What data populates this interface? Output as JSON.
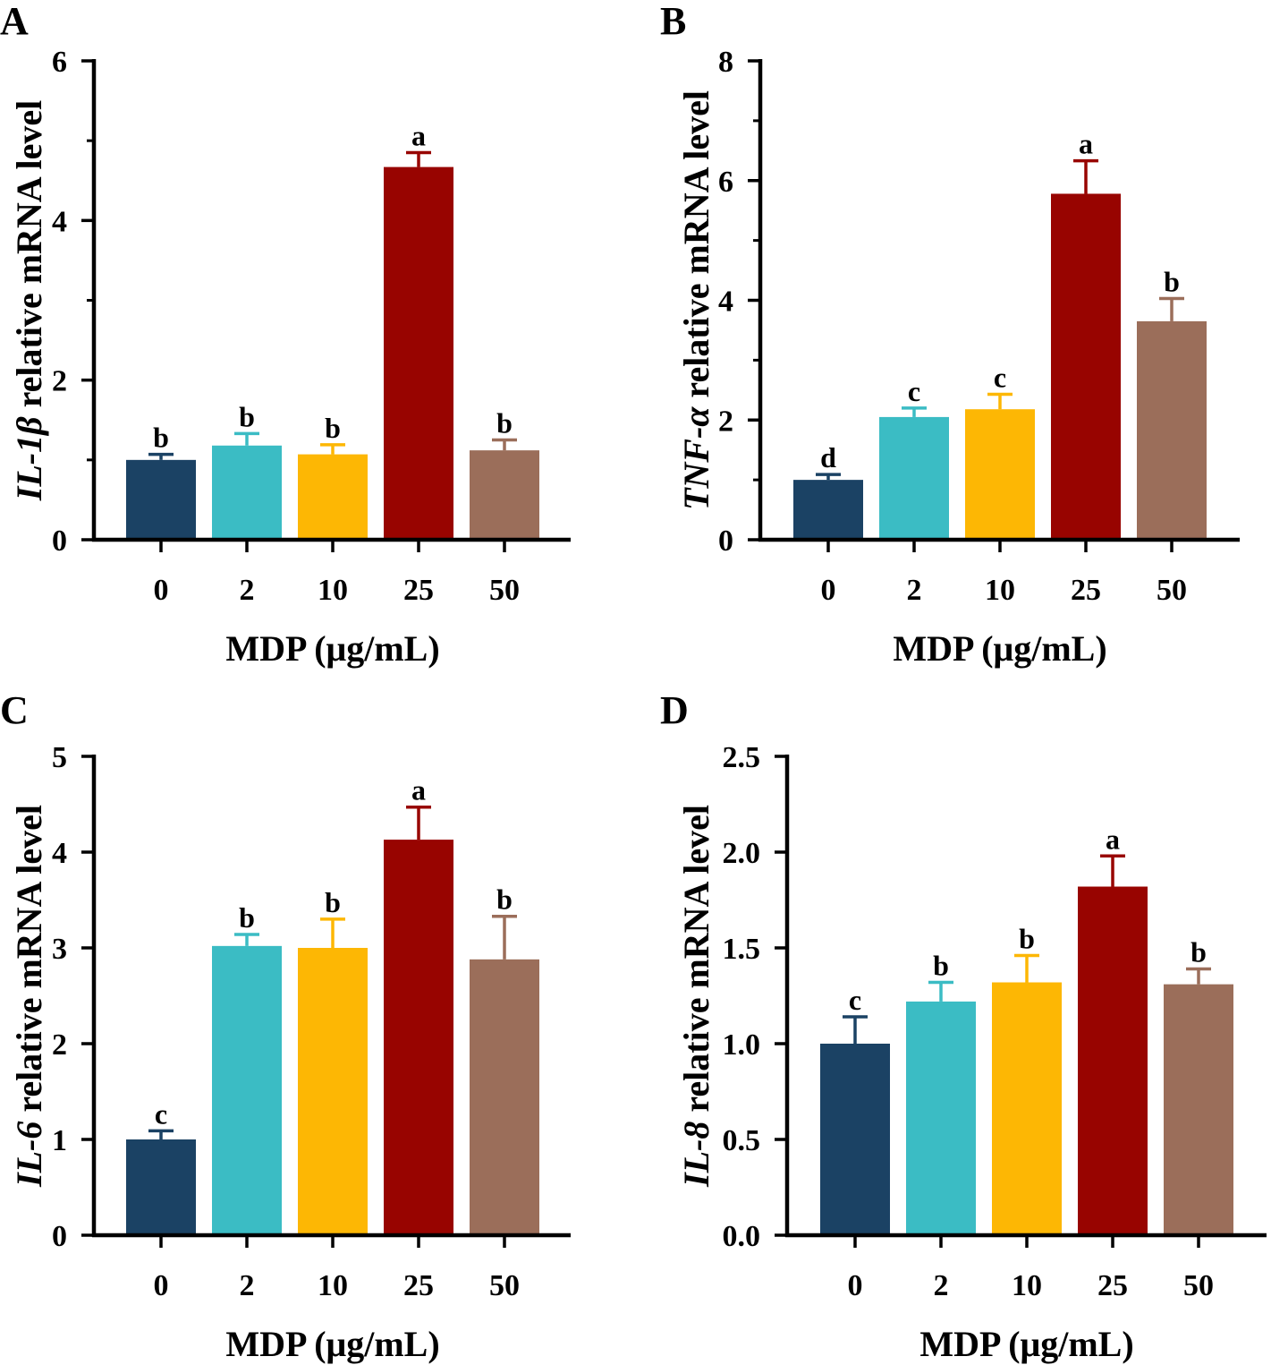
{
  "colors": {
    "bars": [
      "#1b4264",
      "#3bbcc4",
      "#fdb704",
      "#980400",
      "#9b6e5a"
    ],
    "axis": "#000000"
  },
  "chart_data": [
    {
      "type": "bar",
      "panel": "A",
      "ylabel_italic": "IL-1β",
      "ylabel_rest": " relative mRNA level",
      "xlabel": "MDP (μg/mL)",
      "categories": [
        "0",
        "2",
        "10",
        "25",
        "50"
      ],
      "values": [
        1.0,
        1.18,
        1.07,
        4.67,
        1.12
      ],
      "errors": [
        0.07,
        0.15,
        0.12,
        0.18,
        0.13
      ],
      "significance": [
        "b",
        "b",
        "b",
        "a",
        "b"
      ],
      "ylim": [
        0,
        6
      ],
      "yticks": [
        0,
        2,
        4,
        6
      ],
      "yticks_labels": [
        "0",
        "2",
        "4",
        "6"
      ],
      "minor_ticks": true
    },
    {
      "type": "bar",
      "panel": "B",
      "ylabel_italic": "TNF-α",
      "ylabel_rest": " relative mRNA level",
      "xlabel": "MDP (μg/mL)",
      "categories": [
        "0",
        "2",
        "10",
        "25",
        "50"
      ],
      "values": [
        1.0,
        2.05,
        2.18,
        5.78,
        3.65
      ],
      "errors": [
        0.09,
        0.15,
        0.25,
        0.55,
        0.38
      ],
      "significance": [
        "d",
        "c",
        "c",
        "a",
        "b"
      ],
      "ylim": [
        0,
        8
      ],
      "yticks": [
        0,
        2,
        4,
        6,
        8
      ],
      "yticks_labels": [
        "0",
        "2",
        "4",
        "6",
        "8"
      ],
      "minor_ticks": true
    },
    {
      "type": "bar",
      "panel": "C",
      "ylabel_italic": "IL-6",
      "ylabel_rest": " relative mRNA level",
      "xlabel": "MDP (μg/mL)",
      "categories": [
        "0",
        "2",
        "10",
        "25",
        "50"
      ],
      "values": [
        1.0,
        3.02,
        3.0,
        4.13,
        2.88
      ],
      "errors": [
        0.09,
        0.12,
        0.3,
        0.34,
        0.45
      ],
      "significance": [
        "c",
        "b",
        "b",
        "a",
        "b"
      ],
      "ylim": [
        0,
        5
      ],
      "yticks": [
        0,
        1,
        2,
        3,
        4,
        5
      ],
      "yticks_labels": [
        "0",
        "1",
        "2",
        "3",
        "4",
        "5"
      ],
      "minor_ticks": false
    },
    {
      "type": "bar",
      "panel": "D",
      "ylabel_italic": "IL-8",
      "ylabel_rest": " relative mRNA level",
      "xlabel": "MDP (μg/mL)",
      "categories": [
        "0",
        "2",
        "10",
        "25",
        "50"
      ],
      "values": [
        1.0,
        1.22,
        1.32,
        1.82,
        1.31
      ],
      "errors": [
        0.14,
        0.1,
        0.14,
        0.16,
        0.08
      ],
      "significance": [
        "c",
        "b",
        "b",
        "a",
        "b"
      ],
      "ylim": [
        0,
        2.5
      ],
      "yticks": [
        0,
        0.5,
        1.0,
        1.5,
        2.0,
        2.5
      ],
      "yticks_labels": [
        "0.0",
        "0.5",
        "1.0",
        "1.5",
        "2.0",
        "2.5"
      ],
      "minor_ticks": false
    }
  ]
}
